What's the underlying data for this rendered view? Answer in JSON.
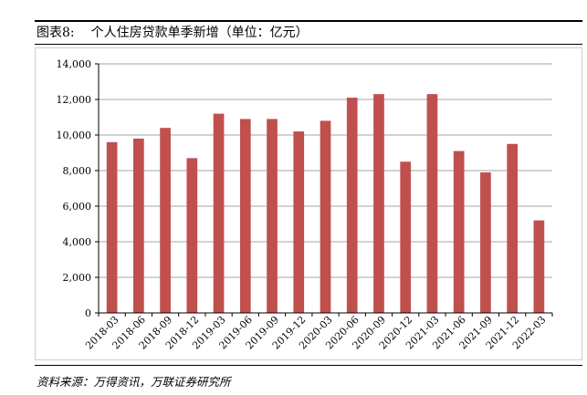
{
  "figure": {
    "label": "图表8:",
    "title": "个人住房贷款单季新增（单位：亿元）"
  },
  "source": "资料来源：万得资讯，万联证券研究所",
  "chart_data": {
    "type": "bar",
    "categories": [
      "2018-03",
      "2018-06",
      "2018-09",
      "2018-12",
      "2019-03",
      "2019-06",
      "2019-09",
      "2019-12",
      "2020-03",
      "2020-06",
      "2020-09",
      "2020-12",
      "2021-03",
      "2021-06",
      "2021-09",
      "2021-12",
      "2022-03"
    ],
    "values": [
      9600,
      9800,
      10400,
      8700,
      11200,
      10900,
      10900,
      10200,
      10800,
      12100,
      12300,
      8500,
      12300,
      9100,
      7900,
      9500,
      5200
    ],
    "ylim": [
      0,
      14000
    ],
    "yticks": [
      0,
      2000,
      4000,
      6000,
      8000,
      10000,
      12000,
      14000
    ],
    "ytick_labels": [
      "0",
      "2,000",
      "4,000",
      "6,000",
      "8,000",
      "10,000",
      "12,000",
      "14,000"
    ],
    "grid": true,
    "bar_color": "#c0504d",
    "grid_color": "#a6a6a6"
  }
}
